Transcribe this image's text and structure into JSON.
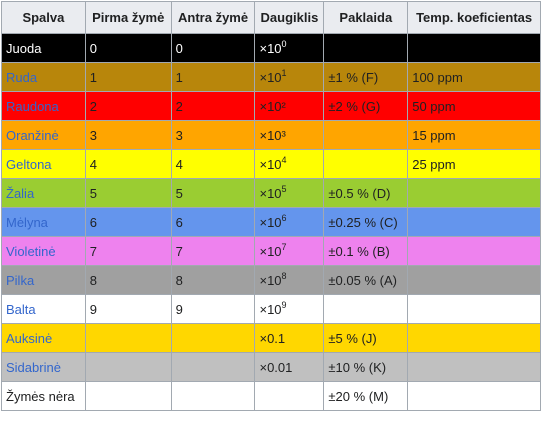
{
  "table": {
    "headers": [
      "Spalva",
      "Pirma žymė",
      "Antra žymė",
      "Daugiklis",
      "Paklaida",
      "Temp. koeficientas"
    ],
    "rows": [
      {
        "color": "Juoda",
        "first": "0",
        "second": "0",
        "mult_base": "×10",
        "mult_exp": "0",
        "tolerance": "",
        "temp": "",
        "bg": "#000000",
        "fg": "#ffffff",
        "name_fg": "#ffffff"
      },
      {
        "color": "Ruda",
        "first": "1",
        "second": "1",
        "mult_base": "×10",
        "mult_exp": "1",
        "tolerance": "±1 % (F)",
        "temp": "100 ppm",
        "bg": "#b8860b",
        "fg": "#202122",
        "name_fg": "#3366cc"
      },
      {
        "color": "Raudona",
        "first": "2",
        "second": "2",
        "mult_base": "×10²",
        "mult_exp": "",
        "tolerance": "±2 % (G)",
        "temp": "50 ppm",
        "bg": "#ff0000",
        "fg": "#202122",
        "name_fg": "#3366cc"
      },
      {
        "color": "Oranžinė",
        "first": "3",
        "second": "3",
        "mult_base": "×10³",
        "mult_exp": "",
        "tolerance": "",
        "temp": "15 ppm",
        "bg": "#ffa500",
        "fg": "#202122",
        "name_fg": "#3366cc"
      },
      {
        "color": "Geltona",
        "first": "4",
        "second": "4",
        "mult_base": "×10",
        "mult_exp": "4",
        "tolerance": "",
        "temp": "25 ppm",
        "bg": "#ffff00",
        "fg": "#202122",
        "name_fg": "#3366cc"
      },
      {
        "color": "Žalia",
        "first": "5",
        "second": "5",
        "mult_base": "×10",
        "mult_exp": "5",
        "tolerance": "±0.5 % (D)",
        "temp": "",
        "bg": "#9acd32",
        "fg": "#202122",
        "name_fg": "#3366cc"
      },
      {
        "color": "Mėlyna",
        "first": "6",
        "second": "6",
        "mult_base": "×10",
        "mult_exp": "6",
        "tolerance": "±0.25 % (C)",
        "temp": "",
        "bg": "#6495ed",
        "fg": "#202122",
        "name_fg": "#3366cc"
      },
      {
        "color": "Violetinė",
        "first": "7",
        "second": "7",
        "mult_base": "×10",
        "mult_exp": "7",
        "tolerance": "±0.1 % (B)",
        "temp": "",
        "bg": "#ee82ee",
        "fg": "#202122",
        "name_fg": "#3366cc"
      },
      {
        "color": "Pilka",
        "first": "8",
        "second": "8",
        "mult_base": "×10",
        "mult_exp": "8",
        "tolerance": "±0.05 % (A)",
        "temp": "",
        "bg": "#a0a0a0",
        "fg": "#202122",
        "name_fg": "#3366cc"
      },
      {
        "color": "Balta",
        "first": "9",
        "second": "9",
        "mult_base": "×10",
        "mult_exp": "9",
        "tolerance": "",
        "temp": "",
        "bg": "#ffffff",
        "fg": "#202122",
        "name_fg": "#3366cc"
      },
      {
        "color": "Auksinė",
        "first": "",
        "second": "",
        "mult_base": "×0.1",
        "mult_exp": "",
        "tolerance": "±5 % (J)",
        "temp": "",
        "bg": "#ffd700",
        "fg": "#202122",
        "name_fg": "#3366cc"
      },
      {
        "color": "Sidabrinė",
        "first": "",
        "second": "",
        "mult_base": "×0.01",
        "mult_exp": "",
        "tolerance": "±10 % (K)",
        "temp": "",
        "bg": "#c0c0c0",
        "fg": "#202122",
        "name_fg": "#3366cc"
      },
      {
        "color": "Žymės nėra",
        "first": "",
        "second": "",
        "mult_base": "",
        "mult_exp": "",
        "tolerance": "±20 % (M)",
        "temp": "",
        "bg": "#ffffff",
        "fg": "#202122",
        "name_fg": "#202122"
      }
    ]
  }
}
